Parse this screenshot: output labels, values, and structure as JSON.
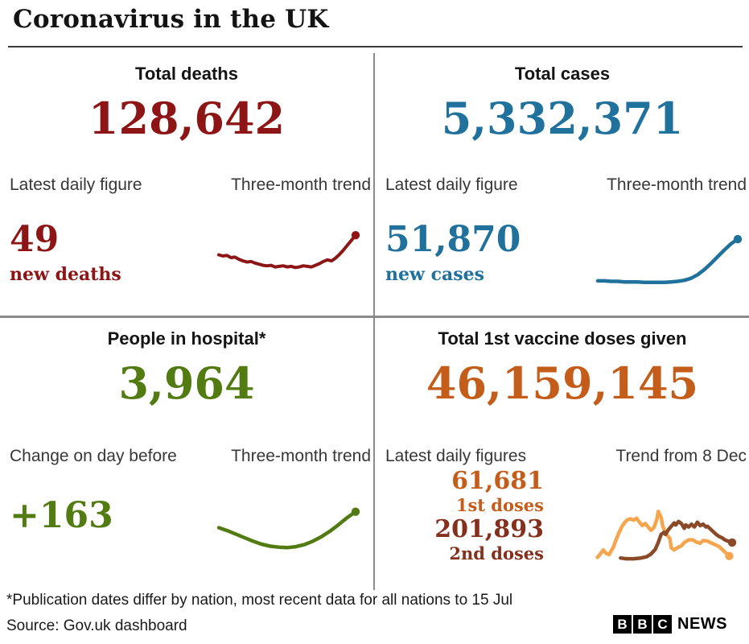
{
  "title": "Coronavirus in the UK",
  "panels": {
    "deaths": {
      "heading": "Total deaths",
      "total": "128,642",
      "stat_label": "Latest daily figure",
      "trend_label": "Three-month trend",
      "stat_value": "49",
      "stat_caption": "new deaths"
    },
    "cases": {
      "heading": "Total cases",
      "total": "5,332,371",
      "stat_label": "Latest daily figure",
      "trend_label": "Three-month trend",
      "stat_value": "51,870",
      "stat_caption": "new cases"
    },
    "hospital": {
      "heading": "People in hospital*",
      "total": "3,964",
      "stat_label": "Change on day before",
      "trend_label": "Three-month trend",
      "stat_value": "+163"
    },
    "vaccines": {
      "heading": "Total 1st vaccine doses given",
      "total": "46,159,145",
      "stat_label": "Latest daily figures",
      "trend_label": "Trend from 8 Dec",
      "first_dose_value": "61,681",
      "first_dose_caption": "1st doses",
      "second_dose_value": "201,893",
      "second_dose_caption": "2nd doses"
    }
  },
  "colors": {
    "deaths": "#8e1515",
    "cases": "#20719c",
    "hospital": "#527c12",
    "vaccine_total": "#c45d1a",
    "first_doses_text": "#c45d1a",
    "first_doses_line": "#f5a54e",
    "second_doses_text": "#84301d",
    "second_doses_line": "#8a4a28",
    "divider": "#8a8a8a"
  },
  "footer": {
    "footnote": "*Publication dates differ by nation, most recent data for all nations to 15 Jul",
    "source": "Source: Gov.uk dashboard",
    "logo_letters": [
      "B",
      "B",
      "C"
    ],
    "logo_suffix": "NEWS"
  },
  "chart_data": [
    {
      "id": "deaths",
      "type": "line",
      "title": "Total deaths — three-month trend (sparkline, no axes; values are relative 0-100)",
      "legend_position": "none",
      "grid": false,
      "series": [
        {
          "name": "New deaths daily trend",
          "color": "#8e1515",
          "stroke_width": 4,
          "end_dot": true,
          "values": [
            52,
            50,
            51,
            47,
            48,
            44,
            41,
            39,
            40,
            37,
            35,
            33,
            32,
            33,
            30,
            31,
            32,
            30,
            31,
            29,
            30,
            32,
            31,
            30,
            33,
            36,
            40,
            43,
            41,
            46,
            53,
            61,
            70,
            79,
            88
          ]
        }
      ]
    },
    {
      "id": "cases",
      "type": "line",
      "title": "Total cases — three-month trend (sparkline, no axes; values are relative 0-100)",
      "legend_position": "none",
      "grid": false,
      "series": [
        {
          "name": "New cases daily trend",
          "color": "#20719c",
          "stroke_width": 4.5,
          "end_dot": true,
          "values": [
            8,
            8,
            7,
            7,
            6,
            6,
            6,
            5,
            5,
            5,
            5,
            6,
            7,
            9,
            13,
            20,
            30,
            42,
            55,
            68,
            80,
            89
          ]
        }
      ]
    },
    {
      "id": "hospital",
      "type": "line",
      "title": "People in hospital — three-month trend (sparkline, no axes; values are relative 0-100)",
      "legend_position": "none",
      "grid": false,
      "series": [
        {
          "name": "People in hospital trend",
          "color": "#527c12",
          "stroke_width": 4.5,
          "end_dot": true,
          "values": [
            54,
            48,
            41,
            34,
            27,
            21,
            17,
            15,
            14,
            16,
            20,
            27,
            36,
            47,
            60,
            74,
            86
          ]
        }
      ]
    },
    {
      "id": "vaccines",
      "type": "line",
      "title": "Vaccine doses — trend from 8 Dec (sparkline, no axes; points are [x%, relative value 0-100])",
      "legend_position": "none",
      "grid": false,
      "series": [
        {
          "name": "1st doses",
          "color": "#f5a54e",
          "stroke_width": 4.5,
          "end_dot": true,
          "points": [
            [
              2,
              15
            ],
            [
              4,
              20
            ],
            [
              6,
              26
            ],
            [
              8,
              21
            ],
            [
              10,
              19
            ],
            [
              13,
              30
            ],
            [
              15,
              42
            ],
            [
              17,
              52
            ],
            [
              19,
              61
            ],
            [
              21,
              67
            ],
            [
              23,
              71
            ],
            [
              25,
              72
            ],
            [
              27,
              70
            ],
            [
              29,
              73
            ],
            [
              31,
              67
            ],
            [
              33,
              62
            ],
            [
              35,
              65
            ],
            [
              37,
              60
            ],
            [
              39,
              55
            ],
            [
              41,
              59
            ],
            [
              43,
              71
            ],
            [
              44,
              83
            ],
            [
              46,
              74
            ],
            [
              47,
              62
            ],
            [
              49,
              51
            ],
            [
              50,
              48
            ],
            [
              52,
              43
            ],
            [
              53,
              29
            ],
            [
              55,
              26
            ],
            [
              57,
              29
            ],
            [
              60,
              32
            ],
            [
              62,
              37
            ],
            [
              65,
              41
            ],
            [
              68,
              41
            ],
            [
              70,
              38
            ],
            [
              73,
              36
            ],
            [
              75,
              40
            ],
            [
              78,
              39
            ],
            [
              81,
              36
            ],
            [
              83,
              34
            ],
            [
              86,
              31
            ],
            [
              88,
              27
            ],
            [
              91,
              21
            ],
            [
              93,
              17
            ]
          ]
        },
        {
          "name": "2nd doses",
          "color": "#8a4a28",
          "stroke_width": 4.5,
          "end_dot": true,
          "points": [
            [
              18,
              14
            ],
            [
              22,
              13
            ],
            [
              27,
              13
            ],
            [
              32,
              14
            ],
            [
              36,
              16
            ],
            [
              39,
              20
            ],
            [
              42,
              27
            ],
            [
              44,
              37
            ],
            [
              46,
              49
            ],
            [
              48,
              52
            ],
            [
              49,
              49
            ],
            [
              51,
              56
            ],
            [
              53,
              61
            ],
            [
              55,
              66
            ],
            [
              56,
              63
            ],
            [
              58,
              68
            ],
            [
              60,
              65
            ],
            [
              62,
              58
            ],
            [
              63,
              63
            ],
            [
              65,
              60
            ],
            [
              67,
              64
            ],
            [
              69,
              60
            ],
            [
              71,
              67
            ],
            [
              73,
              62
            ],
            [
              75,
              64
            ],
            [
              77,
              60
            ],
            [
              78,
              61
            ],
            [
              80,
              57
            ],
            [
              82,
              53
            ],
            [
              84,
              49
            ],
            [
              86,
              46
            ],
            [
              88,
              44
            ],
            [
              90,
              41
            ],
            [
              92,
              39
            ],
            [
              95,
              37
            ]
          ]
        }
      ]
    }
  ]
}
